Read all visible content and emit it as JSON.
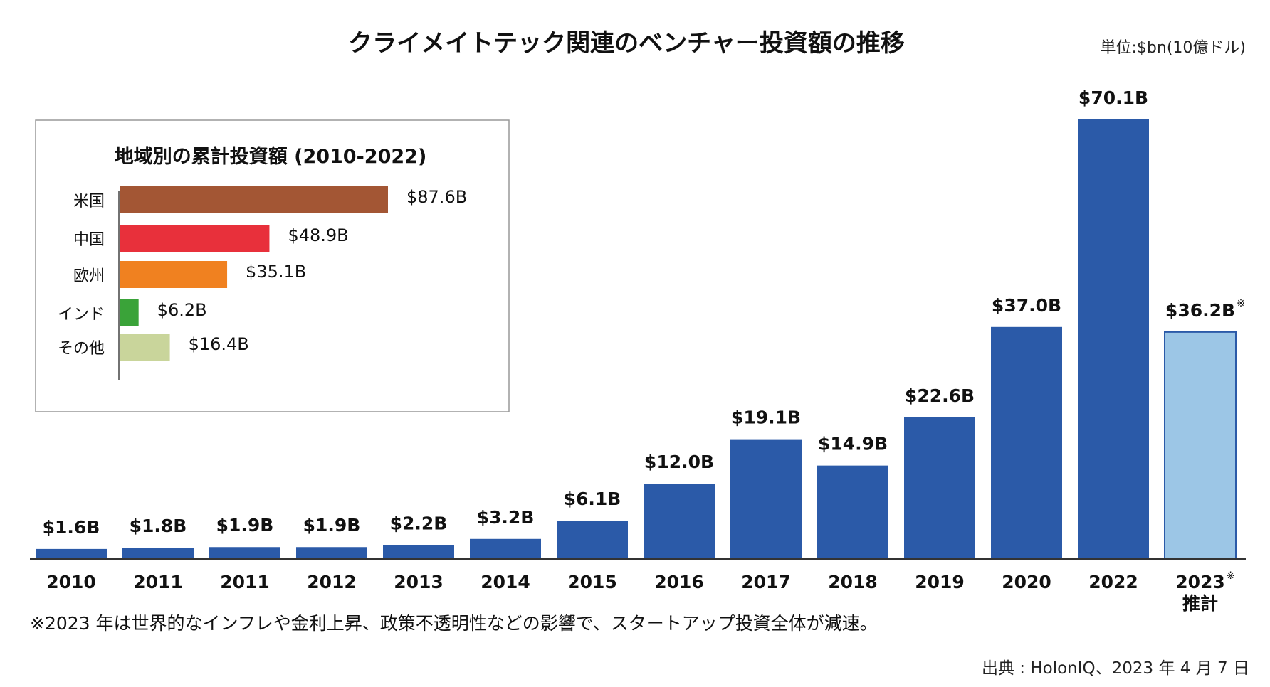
{
  "header": {
    "title": "クライメイトテック関連のベンチャー投資額の推移",
    "unit": "単位:$bn(10億ドル)"
  },
  "chart_data": [
    {
      "type": "bar",
      "title": "クライメイトテック関連のベンチャー投資額の推移",
      "ylabel": "単位:$bn(10億ドル)",
      "categories": [
        "2010",
        "2011",
        "2011",
        "2012",
        "2013",
        "2014",
        "2015",
        "2016",
        "2017",
        "2018",
        "2019",
        "2020",
        "2022",
        "2023"
      ],
      "values": [
        1.6,
        1.8,
        1.9,
        1.9,
        2.2,
        3.2,
        6.1,
        12.0,
        19.1,
        14.9,
        22.6,
        37.0,
        70.1,
        36.2
      ],
      "value_labels": [
        "$1.6B",
        "$1.8B",
        "$1.9B",
        "$1.9B",
        "$2.2B",
        "$3.2B",
        "$6.1B",
        "$12.0B",
        "$19.1B",
        "$14.9B",
        "$22.6B",
        "$37.0B",
        "$70.1B",
        "$36.2B"
      ],
      "estimate_index": 13,
      "estimate_sublabel": "推計",
      "estimate_mark": "※",
      "colors": {
        "actual": "#2B5AA8",
        "estimate": "#9CC6E6",
        "estimate_border": "#2B5AA8"
      },
      "ylim": [
        0,
        70.1
      ],
      "grid": false
    },
    {
      "type": "bar",
      "orientation": "horizontal",
      "title": "地域別の累計投資額 (2010-2022)",
      "categories": [
        "米国",
        "中国",
        "欧州",
        "インド",
        "その他"
      ],
      "values": [
        87.6,
        48.9,
        35.1,
        6.2,
        16.4
      ],
      "value_labels": [
        "$87.6B",
        "$48.9B",
        "$35.1B",
        "$6.2B",
        "$16.4B"
      ],
      "colors": [
        "#A35634",
        "#E8303B",
        "#F08120",
        "#3AA339",
        "#C9D59B"
      ]
    }
  ],
  "footnote": "※2023 年は世界的なインフレや金利上昇、政策不透明性などの影響で、スタートアップ投資全体が減速。",
  "source": "出典 : HolonIQ、2023 年 4 月 7 日"
}
